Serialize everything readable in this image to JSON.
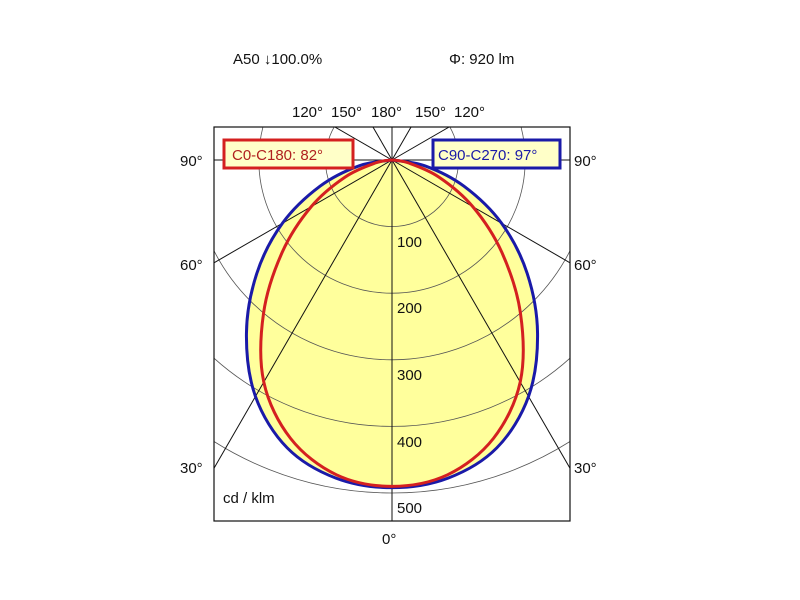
{
  "chart_data": {
    "type": "polar-line",
    "header_left": "A50 ↓100.0%",
    "header_right": "Φ: 920 lm",
    "unit_label": "cd / klm",
    "radial_ticks": [
      100,
      200,
      300,
      400,
      500
    ],
    "radial_range": [
      0,
      500
    ],
    "angle_labels_top": [
      "120°",
      "150°",
      "180°",
      "150°",
      "120°"
    ],
    "angle_labels_side": [
      "90°",
      "60°",
      "30°"
    ],
    "angle_label_bottom": "0°",
    "grid": true,
    "angles_deg": [
      0,
      10,
      20,
      30,
      40,
      50,
      60,
      70,
      80,
      90
    ],
    "series": [
      {
        "name": "C0-C180: 82°",
        "color": "#d42020",
        "values": [
          490,
          480,
          445,
          385,
          300,
          215,
          140,
          75,
          25,
          0
        ]
      },
      {
        "name": "C90-C270: 97°",
        "color": "#1a1aa8",
        "values": [
          492,
          485,
          460,
          410,
          340,
          265,
          190,
          115,
          50,
          0
        ]
      }
    ],
    "fill_color": "#ffff9c",
    "legend_placement": "top"
  }
}
